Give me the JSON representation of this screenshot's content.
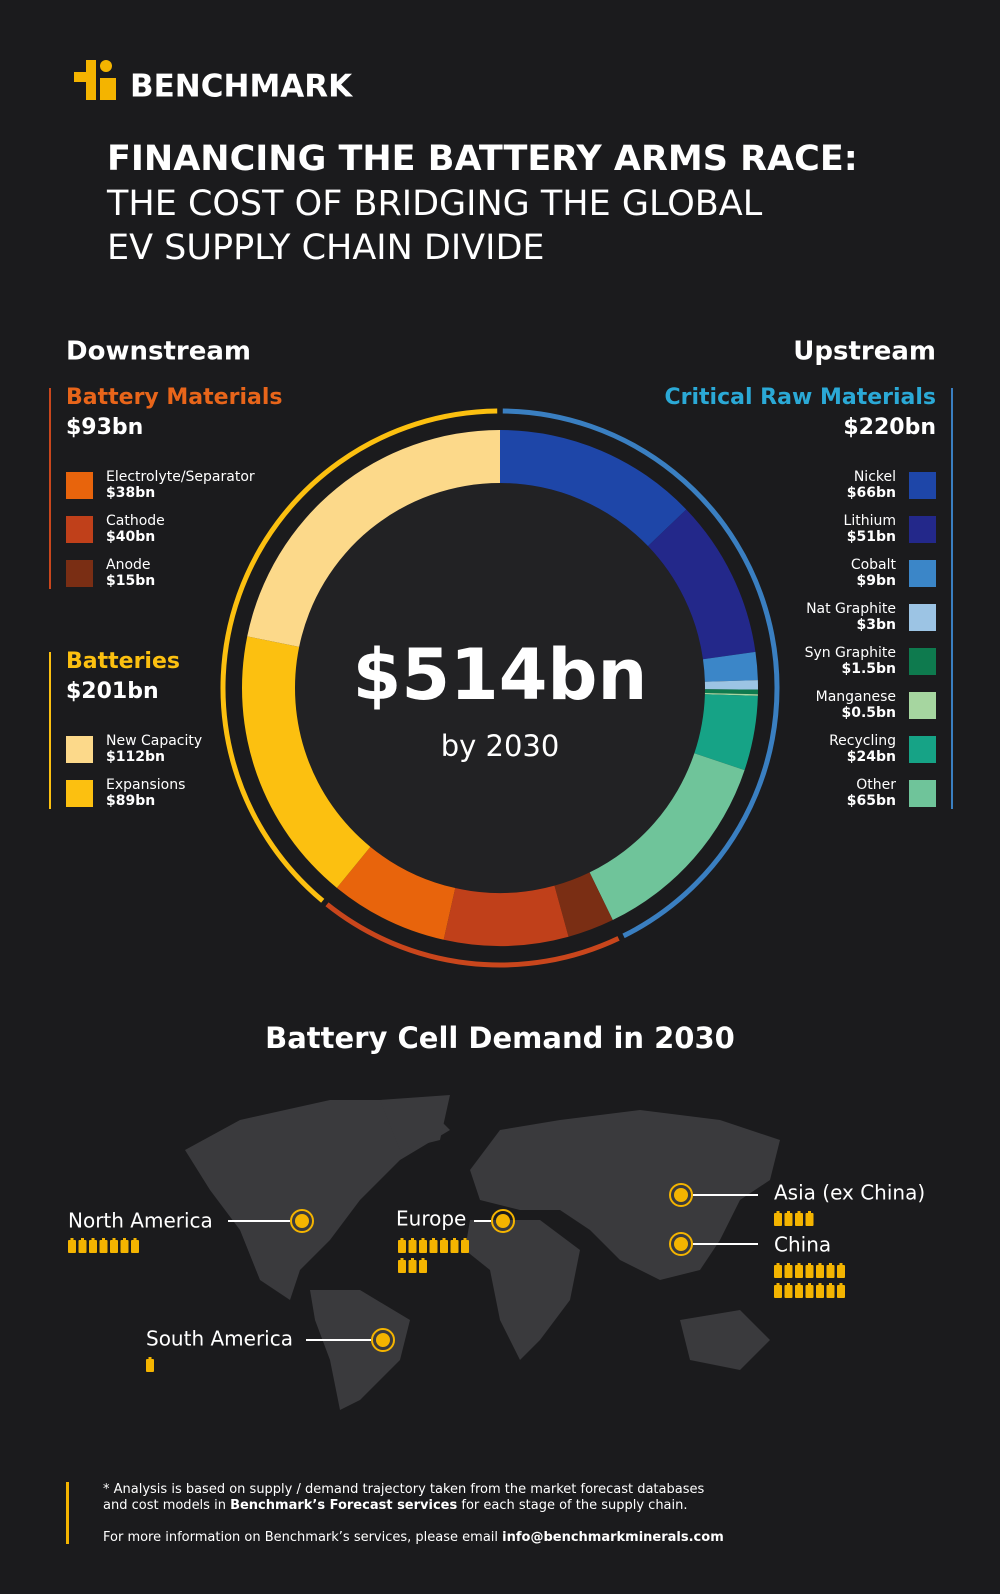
{
  "header": {
    "logo": "BENCHMARK",
    "title": [
      "FINANCING THE BATTERY ARMS RACE:",
      "THE COST OF BRIDGING THE GLOBAL",
      "EV SUPPLY CHAIN DIVIDE"
    ]
  },
  "chart_data": {
    "type": "donut",
    "left_heading": "Downstream",
    "right_heading": "Upstream",
    "total": {
      "value": 514,
      "label": "$514bn"
    },
    "total_note": "by 2030",
    "groups": [
      {
        "name": "Critical Raw Materials",
        "side": "right",
        "value": 220,
        "value_label": "$220bn",
        "color": "#2ba9d6",
        "ring_color": "#3a7fc1",
        "items": [
          {
            "name": "Nickel",
            "value": 66,
            "value_label": "$66bn",
            "color": "#1e46a8"
          },
          {
            "name": "Lithium",
            "value": 51,
            "value_label": "$51bn",
            "color": "#23288a"
          },
          {
            "name": "Cobalt",
            "value": 9,
            "value_label": "$9bn",
            "color": "#3b86c8"
          },
          {
            "name": "Nat Graphite",
            "value": 3,
            "value_label": "$3bn",
            "color": "#9cc4e4"
          },
          {
            "name": "Syn Graphite",
            "value": 1.5,
            "value_label": "$1.5bn",
            "color": "#0e7a4e"
          },
          {
            "name": "Manganese",
            "value": 0.5,
            "value_label": "$0.5bn",
            "color": "#a6d6a0"
          },
          {
            "name": "Recycling",
            "value": 24,
            "value_label": "$24bn",
            "color": "#16a386"
          },
          {
            "name": "Other",
            "value": 65,
            "value_label": "$65bn",
            "color": "#6fc49a"
          }
        ]
      },
      {
        "name": "Battery Materials",
        "side": "left",
        "value": 93,
        "value_label": "$93bn",
        "color": "#e8651a",
        "ring_color": "#c9461c",
        "items": [
          {
            "name": "Electrolyte/Separator",
            "value": 38,
            "value_label": "$38bn",
            "color": "#e8640c"
          },
          {
            "name": "Cathode",
            "value": 40,
            "value_label": "$40bn",
            "color": "#c0401a"
          },
          {
            "name": "Anode",
            "value": 15,
            "value_label": "$15bn",
            "color": "#7a2e14"
          }
        ]
      },
      {
        "name": "Batteries",
        "side": "left",
        "value": 201,
        "value_label": "$201bn",
        "color": "#fcc010",
        "ring_color": "#fcc010",
        "items": [
          {
            "name": "New Capacity",
            "value": 112,
            "value_label": "$112bn",
            "color": "#fcd98a"
          },
          {
            "name": "Expansions",
            "value": 89,
            "value_label": "$89bn",
            "color": "#fcc010"
          }
        ]
      }
    ]
  },
  "demand": {
    "title": "Battery Cell Demand in 2030",
    "regions": [
      {
        "name": "North America",
        "cells": 7
      },
      {
        "name": "Europe",
        "cells": 10
      },
      {
        "name": "Asia (ex China)",
        "cells": 4
      },
      {
        "name": "China",
        "cells": 14
      },
      {
        "name": "South America",
        "cells": 1
      }
    ]
  },
  "footer": {
    "note": [
      "* Analysis is based on supply / demand trajectory taken from the market forecast databases",
      "and cost models in",
      "Benchmark’s Forecast services",
      "for each stage of the supply chain."
    ],
    "contact": [
      "For more information on Benchmark’s services, please email",
      "info@benchmarkminerals.com"
    ]
  }
}
